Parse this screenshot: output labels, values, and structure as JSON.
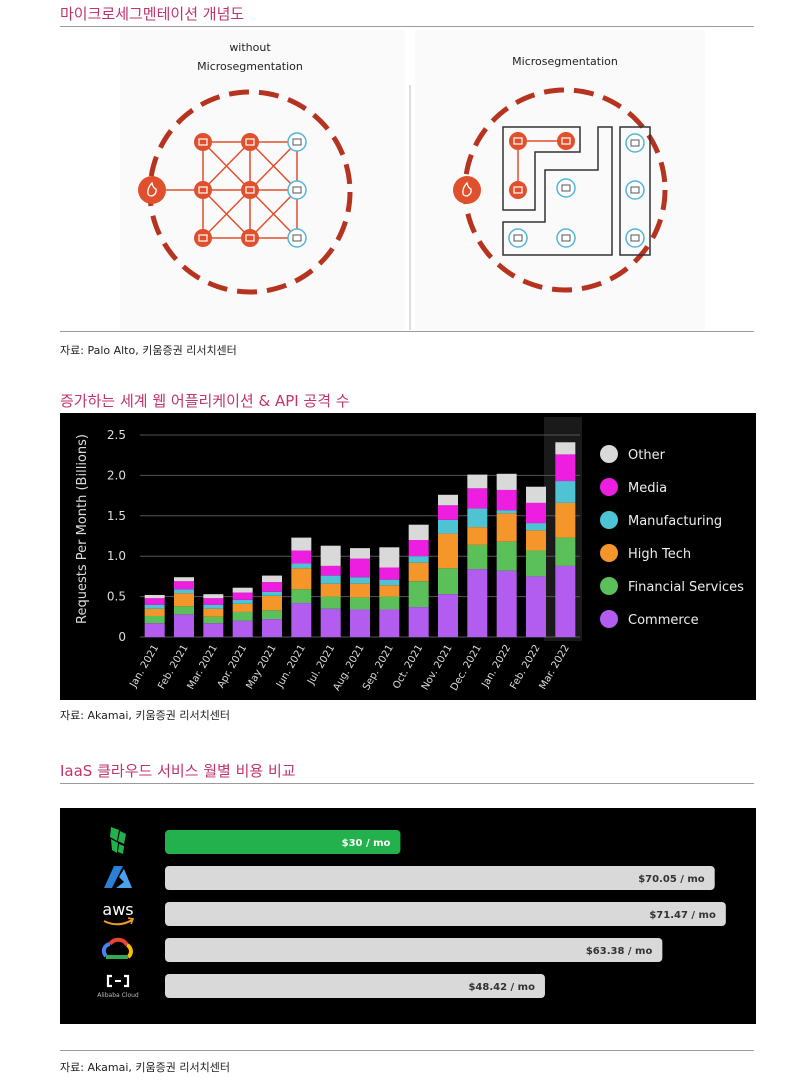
{
  "section1": {
    "title": "마이크로세그멘테이션 개념도",
    "left_label_line1": "without",
    "left_label_line2": "Microsegmentation",
    "right_label": "Microsegmentation",
    "source": "자료: Palo Alto, 키움증권 리서치센터"
  },
  "section2": {
    "title": "증가하는 세계 웹 어플리케이션 & API 공격 수",
    "source": "자료: Akamai, 키움증권 리서치센터"
  },
  "section3": {
    "title": "IaaS 클라우드 서비스 월별 비용 비교",
    "source": "자료: Akamai, 키움증권 리서치센터"
  },
  "chart_data": [
    {
      "type": "bar",
      "stacked": true,
      "ylabel": "Requests Per Month (Billions)",
      "ylim": [
        0,
        2.5
      ],
      "yticks": [
        "0",
        "0.5",
        "1.0",
        "1.5",
        "2.0",
        "2.5"
      ],
      "grid": true,
      "legend_position": "right",
      "categories": [
        "Jan. 2021",
        "Feb. 2021",
        "Mar. 2021",
        "Apr. 2021",
        "May 2021",
        "Jun. 2021",
        "Jul. 2021",
        "Aug. 2021",
        "Sep. 2021",
        "Oct. 2021",
        "Nov. 2021",
        "Dec. 2021",
        "Jan. 2022",
        "Feb. 2022",
        "Mar. 2022"
      ],
      "series": [
        {
          "name": "Commerce",
          "color": "#b25df0",
          "values": [
            0.17,
            0.28,
            0.17,
            0.2,
            0.22,
            0.42,
            0.35,
            0.34,
            0.34,
            0.37,
            0.53,
            0.84,
            0.82,
            0.75,
            0.88
          ]
        },
        {
          "name": "Financial Services",
          "color": "#5cc05a",
          "values": [
            0.09,
            0.1,
            0.08,
            0.11,
            0.11,
            0.17,
            0.15,
            0.15,
            0.16,
            0.32,
            0.32,
            0.3,
            0.36,
            0.32,
            0.35
          ]
        },
        {
          "name": "High Tech",
          "color": "#f5962a",
          "values": [
            0.09,
            0.16,
            0.1,
            0.1,
            0.18,
            0.26,
            0.16,
            0.17,
            0.14,
            0.23,
            0.43,
            0.22,
            0.35,
            0.25,
            0.43
          ]
        },
        {
          "name": "Manufacturing",
          "color": "#4ec3d4",
          "values": [
            0.05,
            0.05,
            0.05,
            0.05,
            0.05,
            0.06,
            0.1,
            0.08,
            0.07,
            0.08,
            0.17,
            0.23,
            0.04,
            0.09,
            0.27
          ]
        },
        {
          "name": "Media",
          "color": "#ee1ee0",
          "values": [
            0.08,
            0.1,
            0.08,
            0.09,
            0.12,
            0.16,
            0.12,
            0.23,
            0.15,
            0.2,
            0.18,
            0.25,
            0.25,
            0.25,
            0.33
          ]
        },
        {
          "name": "Other",
          "color": "#d9d9d9",
          "values": [
            0.04,
            0.05,
            0.05,
            0.06,
            0.08,
            0.16,
            0.25,
            0.13,
            0.25,
            0.19,
            0.13,
            0.17,
            0.2,
            0.2,
            0.15
          ]
        }
      ]
    },
    {
      "type": "bar",
      "orientation": "horizontal",
      "categories": [
        "Linode",
        "Azure",
        "AWS",
        "Google Cloud",
        "Alibaba Cloud"
      ],
      "values": [
        30,
        70.05,
        71.47,
        63.38,
        48.42
      ],
      "labels": [
        "$30 / mo",
        "$70.05 / mo",
        "$71.47 / mo",
        "$63.38 / mo",
        "$48.42 / mo"
      ],
      "colors": [
        "#22b14c",
        "#d9d9d9",
        "#d9d9d9",
        "#d9d9d9",
        "#d9d9d9"
      ],
      "logo_labels": {
        "aws": "aws",
        "alibaba": "Alibaba Cloud"
      },
      "xlim": [
        0,
        72
      ]
    }
  ]
}
